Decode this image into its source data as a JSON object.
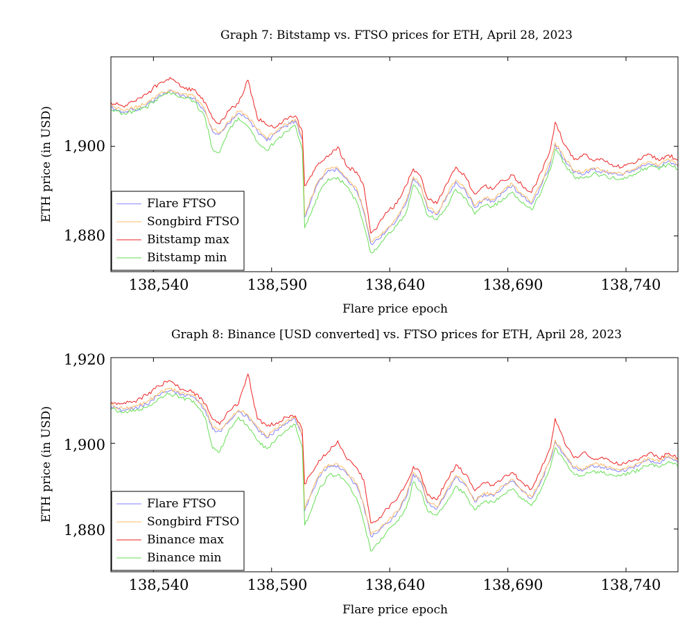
{
  "chart_data": [
    {
      "type": "line",
      "title": "Graph 7: Bitstamp vs. FTSO prices for ETH, April 28, 2023",
      "xlabel": "Flare price epoch",
      "ylabel": "ETH price (in USD)",
      "xlim": [
        138522,
        138762
      ],
      "ylim": [
        1872,
        1920
      ],
      "xticks": [
        138540,
        138590,
        138640,
        138690,
        138740
      ],
      "xtick_labels": [
        "138,540",
        "138,590",
        "138,640",
        "138,690",
        "138,740"
      ],
      "yticks": [
        1880,
        1900
      ],
      "ytick_labels": [
        "1,880",
        "1,900"
      ],
      "legend_position": "bottom-left",
      "knots_x": [
        138522,
        138527,
        138532,
        138537,
        138542,
        138547,
        138552,
        138557,
        138562,
        138565,
        138568,
        138572,
        138576,
        138580,
        138584,
        138588,
        138592,
        138596,
        138600,
        138603,
        138604,
        138607,
        138610,
        138614,
        138618,
        138622,
        138626,
        138629,
        138632,
        138635,
        138639,
        138643,
        138647,
        138650,
        138653,
        138656,
        138660,
        138664,
        138668,
        138672,
        138676,
        138680,
        138684,
        138688,
        138692,
        138696,
        138700,
        138704,
        138708,
        138710,
        138714,
        138718,
        138722,
        138726,
        138730,
        138734,
        138738,
        138742,
        138746,
        138750,
        138754,
        138758,
        138762
      ],
      "series": [
        {
          "name": "Flare FTSO",
          "color": "#8080ff",
          "values": [
            1908.6,
            1907.7,
            1908.2,
            1909.1,
            1911.2,
            1912.3,
            1911.4,
            1910.8,
            1907.6,
            1903.3,
            1902.8,
            1905.1,
            1907.4,
            1906.2,
            1903.4,
            1901.2,
            1903.1,
            1904.6,
            1905.7,
            1901.4,
            1884.2,
            1888.4,
            1892.1,
            1894.7,
            1894.8,
            1892.6,
            1890.2,
            1885.4,
            1878.3,
            1879.2,
            1881.3,
            1883.6,
            1887.4,
            1892.8,
            1891.1,
            1886.1,
            1884.7,
            1888.6,
            1892.1,
            1890.2,
            1886.3,
            1888.1,
            1887.6,
            1889.7,
            1891.2,
            1888.8,
            1887.1,
            1891.1,
            1896.2,
            1900.4,
            1897.1,
            1894.1,
            1893.7,
            1894.8,
            1894.4,
            1893.8,
            1893.6,
            1894.2,
            1895.1,
            1896.1,
            1895.3,
            1896.8,
            1895.5
          ]
        },
        {
          "name": "Songbird FTSO",
          "color": "#ffbb66",
          "values": [
            1909.0,
            1908.1,
            1908.6,
            1909.5,
            1911.6,
            1912.7,
            1911.8,
            1911.2,
            1908.0,
            1903.7,
            1903.2,
            1905.5,
            1907.8,
            1906.6,
            1903.8,
            1901.6,
            1903.5,
            1905.0,
            1906.1,
            1901.8,
            1884.6,
            1888.8,
            1892.5,
            1895.1,
            1895.2,
            1893.0,
            1890.6,
            1885.8,
            1878.7,
            1879.6,
            1881.7,
            1884.0,
            1887.8,
            1893.2,
            1891.5,
            1886.5,
            1885.1,
            1889.0,
            1892.5,
            1890.6,
            1886.7,
            1888.5,
            1888.0,
            1890.1,
            1891.6,
            1889.2,
            1887.5,
            1891.5,
            1896.6,
            1900.8,
            1897.5,
            1894.5,
            1894.1,
            1895.2,
            1894.8,
            1894.2,
            1894.0,
            1894.6,
            1895.5,
            1896.5,
            1895.7,
            1897.2,
            1895.9
          ]
        },
        {
          "name": "Bitstamp max",
          "color": "#ee2222",
          "values": [
            1909.8,
            1909.0,
            1910.1,
            1911.6,
            1913.9,
            1915.4,
            1913.2,
            1912.6,
            1909.8,
            1906.2,
            1905.0,
            1908.0,
            1909.6,
            1914.8,
            1906.2,
            1904.8,
            1904.4,
            1906.2,
            1906.8,
            1903.4,
            1891.2,
            1893.4,
            1896.3,
            1897.7,
            1899.9,
            1895.4,
            1894.3,
            1891.2,
            1880.6,
            1882.3,
            1885.3,
            1887.2,
            1891.3,
            1895.0,
            1893.4,
            1888.3,
            1887.2,
            1891.6,
            1895.4,
            1893.2,
            1889.3,
            1891.2,
            1890.5,
            1892.4,
            1893.6,
            1891.3,
            1889.7,
            1894.2,
            1899.4,
            1905.4,
            1900.3,
            1897.0,
            1898.3,
            1896.8,
            1897.2,
            1896.0,
            1895.3,
            1896.2,
            1897.0,
            1898.2,
            1896.8,
            1898.1,
            1896.9
          ]
        },
        {
          "name": "Bitstamp min",
          "color": "#66dd55",
          "values": [
            1908.2,
            1907.3,
            1907.8,
            1908.7,
            1910.8,
            1911.9,
            1911.0,
            1910.2,
            1906.2,
            1899.4,
            1898.6,
            1903.6,
            1906.4,
            1904.4,
            1901.0,
            1899.1,
            1901.4,
            1903.3,
            1904.7,
            1899.3,
            1881.8,
            1885.4,
            1889.6,
            1892.8,
            1893.1,
            1891.0,
            1887.6,
            1882.4,
            1876.3,
            1877.5,
            1880.2,
            1882.3,
            1885.3,
            1891.4,
            1889.3,
            1884.6,
            1883.6,
            1886.5,
            1890.4,
            1888.5,
            1884.8,
            1886.8,
            1886.6,
            1888.4,
            1889.8,
            1887.3,
            1885.8,
            1889.6,
            1894.9,
            1899.4,
            1896.2,
            1893.2,
            1892.9,
            1893.9,
            1893.5,
            1893.0,
            1892.8,
            1893.5,
            1894.4,
            1895.5,
            1894.8,
            1896.2,
            1894.9
          ]
        }
      ]
    },
    {
      "type": "line",
      "title": "Graph 8: Binance [USD converted] vs. FTSO prices for ETH, April 28, 2023",
      "xlabel": "Flare price epoch",
      "ylabel": "ETH price (in USD)",
      "xlim": [
        138522,
        138762
      ],
      "ylim": [
        1870,
        1920
      ],
      "xticks": [
        138540,
        138590,
        138640,
        138690,
        138740
      ],
      "xtick_labels": [
        "138,540",
        "138,590",
        "138,640",
        "138,690",
        "138,740"
      ],
      "yticks": [
        1880,
        1900,
        1920
      ],
      "ytick_labels": [
        "1,880",
        "1,900",
        "1,920"
      ],
      "legend_position": "bottom-left",
      "knots_x": [
        138522,
        138527,
        138532,
        138537,
        138542,
        138547,
        138552,
        138557,
        138562,
        138565,
        138568,
        138572,
        138576,
        138580,
        138584,
        138588,
        138592,
        138596,
        138600,
        138603,
        138604,
        138607,
        138610,
        138614,
        138618,
        138622,
        138626,
        138629,
        138632,
        138635,
        138639,
        138643,
        138647,
        138650,
        138653,
        138656,
        138660,
        138664,
        138668,
        138672,
        138676,
        138680,
        138684,
        138688,
        138692,
        138696,
        138700,
        138704,
        138708,
        138710,
        138714,
        138718,
        138722,
        138726,
        138730,
        138734,
        138738,
        138742,
        138746,
        138750,
        138754,
        138758,
        138762
      ],
      "series": [
        {
          "name": "Flare FTSO",
          "color": "#8080ff",
          "values": [
            1908.6,
            1907.7,
            1908.2,
            1909.1,
            1911.2,
            1912.3,
            1911.4,
            1910.8,
            1907.6,
            1903.3,
            1902.8,
            1905.1,
            1907.4,
            1906.2,
            1903.4,
            1901.2,
            1903.1,
            1904.6,
            1905.7,
            1901.4,
            1884.2,
            1888.4,
            1892.1,
            1894.7,
            1894.8,
            1892.6,
            1890.2,
            1885.4,
            1878.3,
            1879.2,
            1881.3,
            1883.6,
            1887.4,
            1892.8,
            1891.1,
            1886.1,
            1884.7,
            1888.6,
            1892.1,
            1890.2,
            1886.3,
            1888.1,
            1887.6,
            1889.7,
            1891.2,
            1888.8,
            1887.1,
            1891.1,
            1896.2,
            1900.4,
            1897.1,
            1894.1,
            1893.7,
            1894.8,
            1894.4,
            1893.8,
            1893.6,
            1894.2,
            1895.1,
            1896.1,
            1895.3,
            1896.8,
            1895.5
          ]
        },
        {
          "name": "Songbird FTSO",
          "color": "#ffbb66",
          "values": [
            1909.0,
            1908.1,
            1908.6,
            1909.5,
            1911.6,
            1912.7,
            1911.8,
            1911.2,
            1908.0,
            1903.7,
            1903.2,
            1905.5,
            1907.8,
            1906.6,
            1903.8,
            1901.6,
            1903.5,
            1905.0,
            1906.1,
            1901.8,
            1884.6,
            1888.8,
            1892.5,
            1895.1,
            1895.2,
            1893.0,
            1890.6,
            1885.8,
            1878.7,
            1879.6,
            1881.7,
            1884.0,
            1887.8,
            1893.2,
            1891.5,
            1886.5,
            1885.1,
            1889.0,
            1892.5,
            1890.6,
            1886.7,
            1888.5,
            1888.0,
            1890.1,
            1891.6,
            1889.2,
            1887.5,
            1891.5,
            1896.6,
            1900.8,
            1897.5,
            1894.5,
            1894.1,
            1895.2,
            1894.8,
            1894.2,
            1894.0,
            1894.6,
            1895.5,
            1896.5,
            1895.7,
            1897.2,
            1895.9
          ]
        },
        {
          "name": "Binance max",
          "color": "#ee2222",
          "values": [
            1909.6,
            1909.2,
            1909.8,
            1911.2,
            1913.4,
            1914.6,
            1912.6,
            1912.0,
            1909.2,
            1905.6,
            1904.4,
            1907.5,
            1909.2,
            1916.2,
            1905.7,
            1904.0,
            1904.8,
            1906.1,
            1906.4,
            1903.1,
            1890.5,
            1893.1,
            1896.0,
            1898.0,
            1900.6,
            1896.2,
            1894.3,
            1891.5,
            1881.4,
            1882.0,
            1884.8,
            1886.8,
            1890.6,
            1894.6,
            1893.0,
            1887.9,
            1886.8,
            1891.2,
            1895.0,
            1892.8,
            1888.9,
            1890.8,
            1890.1,
            1892.0,
            1893.2,
            1890.9,
            1889.3,
            1893.9,
            1899.0,
            1905.8,
            1900.1,
            1896.6,
            1897.9,
            1896.4,
            1896.8,
            1895.6,
            1894.9,
            1895.8,
            1896.6,
            1897.8,
            1896.4,
            1897.7,
            1896.5
          ]
        },
        {
          "name": "Binance min",
          "color": "#66dd55",
          "values": [
            1908.0,
            1907.1,
            1907.5,
            1908.3,
            1910.5,
            1911.6,
            1910.6,
            1909.9,
            1905.9,
            1898.8,
            1897.9,
            1903.3,
            1906.1,
            1904.0,
            1900.6,
            1898.7,
            1901.0,
            1903.0,
            1904.4,
            1899.0,
            1880.9,
            1884.6,
            1889.1,
            1892.4,
            1892.7,
            1890.6,
            1887.2,
            1881.6,
            1874.8,
            1876.6,
            1879.6,
            1881.8,
            1884.8,
            1891.0,
            1888.9,
            1884.2,
            1883.2,
            1886.1,
            1890.0,
            1888.1,
            1884.4,
            1886.4,
            1886.2,
            1888.0,
            1889.4,
            1886.9,
            1885.4,
            1889.2,
            1894.5,
            1899.0,
            1895.8,
            1892.8,
            1892.5,
            1893.5,
            1893.1,
            1892.6,
            1892.4,
            1893.1,
            1894.0,
            1895.1,
            1894.4,
            1895.8,
            1894.5
          ]
        }
      ]
    }
  ]
}
